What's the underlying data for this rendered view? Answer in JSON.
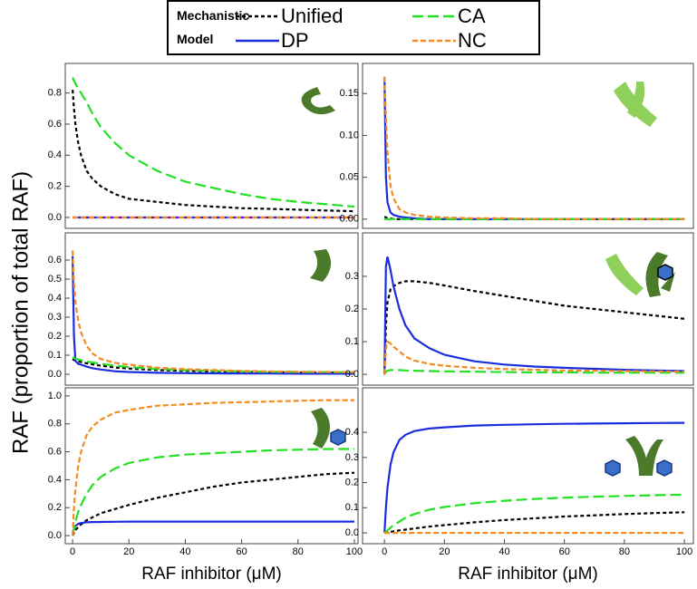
{
  "figure": {
    "legend_title": "Mechanistic Model",
    "ylabel": "RAF (proportion of total RAF)"
  },
  "chart_data": [
    {
      "type": "line",
      "xlim": [
        -2.6,
        101.3
      ],
      "ylim": [
        -0.07,
        0.99
      ],
      "yticks": [
        {
          "value": 0,
          "label": "0.0"
        },
        0.2,
        0.4,
        0.6,
        0.8
      ],
      "x": [
        0,
        0.5,
        1,
        2,
        3,
        5,
        7,
        10,
        15,
        20,
        30,
        40,
        50,
        60,
        70,
        80,
        90,
        100
      ],
      "series": [
        {
          "name": "Unified",
          "color": "#000000",
          "dash": "4,3",
          "values": [
            0.82,
            0.7,
            0.6,
            0.48,
            0.4,
            0.3,
            0.25,
            0.2,
            0.15,
            0.12,
            0.1,
            0.08,
            0.07,
            0.06,
            0.055,
            0.05,
            0.045,
            0.04
          ]
        },
        {
          "name": "DP",
          "color": "#1a2ee0",
          "dash": "none",
          "values": [
            0,
            0,
            0,
            0,
            0,
            0,
            0,
            0,
            0,
            0,
            0,
            0,
            0,
            0,
            0,
            0,
            0,
            0
          ]
        },
        {
          "name": "CA",
          "color": "#22e022",
          "dash": "12,5",
          "values": [
            0.9,
            0.88,
            0.86,
            0.83,
            0.8,
            0.74,
            0.67,
            0.58,
            0.48,
            0.4,
            0.3,
            0.23,
            0.19,
            0.15,
            0.12,
            0.1,
            0.085,
            0.07
          ]
        },
        {
          "name": "NC",
          "color": "#f58a1f",
          "dash": "6,3",
          "values": [
            0,
            0,
            0,
            0,
            0,
            0,
            0,
            0,
            0,
            0,
            0,
            0,
            0,
            0,
            0,
            0,
            0,
            0
          ]
        }
      ]
    },
    {
      "type": "line",
      "xlim": [
        -7.3,
        103
      ],
      "ylim": [
        -0.011,
        0.186
      ],
      "yticks": [
        {
          "value": 0,
          "label": "0.00"
        },
        0.05,
        {
          "value": 0.1,
          "label": "0.10"
        },
        0.15
      ],
      "x": [
        0,
        0.5,
        1,
        2,
        3,
        5,
        7,
        10,
        15,
        20,
        30,
        40,
        50,
        60,
        70,
        80,
        90,
        100
      ],
      "series": [
        {
          "color": "#000000",
          "dash": "4,3",
          "values": [
            0.003,
            0.002,
            0.001,
            0.001,
            0,
            0,
            0,
            0,
            0,
            0,
            0,
            0,
            0,
            0,
            0,
            0,
            0,
            0
          ]
        },
        {
          "color": "#1a2ee0",
          "dash": "none",
          "values": [
            0.17,
            0.05,
            0.02,
            0.008,
            0.005,
            0.003,
            0.002,
            0.001,
            0,
            0,
            0,
            0,
            0,
            0,
            0,
            0,
            0,
            0
          ]
        },
        {
          "color": "#22e022",
          "dash": "12,5",
          "values": [
            0,
            0,
            0,
            0,
            0,
            0,
            0,
            0,
            0,
            0,
            0,
            0,
            0,
            0,
            0,
            0,
            0,
            0
          ]
        },
        {
          "color": "#f58a1f",
          "dash": "6,3",
          "values": [
            0.17,
            0.12,
            0.08,
            0.04,
            0.025,
            0.012,
            0.008,
            0.005,
            0.003,
            0.002,
            0.001,
            0.001,
            0,
            0,
            0,
            0,
            0,
            0
          ]
        }
      ]
    },
    {
      "type": "line",
      "xlim": [
        -2.6,
        101.3
      ],
      "ylim": [
        -0.057,
        0.743
      ],
      "yticks": [
        {
          "value": 0,
          "label": "0.0"
        },
        0.1,
        0.2,
        0.3,
        0.4,
        0.5,
        0.6
      ],
      "x": [
        0,
        0.5,
        1,
        2,
        3,
        5,
        7,
        10,
        15,
        20,
        30,
        40,
        50,
        60,
        70,
        80,
        90,
        100
      ],
      "series": [
        {
          "color": "#000000",
          "dash": "4,3",
          "values": [
            0.08,
            0.075,
            0.072,
            0.068,
            0.064,
            0.058,
            0.052,
            0.045,
            0.036,
            0.03,
            0.022,
            0.018,
            0.015,
            0.013,
            0.011,
            0.01,
            0.009,
            0.008
          ]
        },
        {
          "color": "#1a2ee0",
          "dash": "none",
          "values": [
            0.62,
            0.2,
            0.07,
            0.055,
            0.05,
            0.04,
            0.032,
            0.025,
            0.016,
            0.012,
            0.008,
            0.006,
            0.005,
            0.004,
            0.004,
            0.003,
            0.003,
            0.003
          ]
        },
        {
          "color": "#22e022",
          "dash": "12,5",
          "values": [
            0.09,
            0.085,
            0.082,
            0.078,
            0.074,
            0.068,
            0.062,
            0.055,
            0.045,
            0.038,
            0.028,
            0.022,
            0.018,
            0.015,
            0.013,
            0.012,
            0.011,
            0.01
          ]
        },
        {
          "color": "#f58a1f",
          "dash": "6,3",
          "values": [
            0.65,
            0.48,
            0.38,
            0.28,
            0.22,
            0.15,
            0.11,
            0.08,
            0.06,
            0.05,
            0.035,
            0.027,
            0.022,
            0.018,
            0.015,
            0.013,
            0.012,
            0.01
          ]
        }
      ]
    },
    {
      "type": "line",
      "xlim": [
        -7.3,
        103
      ],
      "ylim": [
        -0.033,
        0.433
      ],
      "yticks": [
        {
          "value": 0,
          "label": "0.0"
        },
        0.1,
        0.2,
        0.3
      ],
      "x": [
        0,
        0.5,
        1,
        2,
        3,
        5,
        7,
        10,
        15,
        20,
        30,
        40,
        50,
        60,
        70,
        80,
        90,
        100
      ],
      "series": [
        {
          "color": "#000000",
          "dash": "4,3",
          "values": [
            0,
            0.15,
            0.22,
            0.26,
            0.27,
            0.28,
            0.285,
            0.285,
            0.28,
            0.272,
            0.255,
            0.24,
            0.225,
            0.21,
            0.2,
            0.19,
            0.18,
            0.17
          ]
        },
        {
          "color": "#1a2ee0",
          "dash": "none",
          "values": [
            0,
            0.33,
            0.36,
            0.32,
            0.27,
            0.2,
            0.15,
            0.11,
            0.08,
            0.06,
            0.04,
            0.03,
            0.024,
            0.02,
            0.017,
            0.014,
            0.012,
            0.01
          ]
        },
        {
          "color": "#22e022",
          "dash": "12,5",
          "values": [
            0,
            0.008,
            0.011,
            0.013,
            0.013,
            0.013,
            0.012,
            0.011,
            0.01,
            0.009,
            0.008,
            0.007,
            0.006,
            0.006,
            0.005,
            0.005,
            0.005,
            0.005
          ]
        },
        {
          "color": "#f58a1f",
          "dash": "6,3",
          "values": [
            0,
            0.08,
            0.1,
            0.095,
            0.085,
            0.07,
            0.055,
            0.042,
            0.032,
            0.026,
            0.02,
            0.016,
            0.014,
            0.012,
            0.011,
            0.01,
            0.009,
            0.008
          ]
        }
      ]
    },
    {
      "type": "line",
      "xlim": [
        -2.6,
        101.3
      ],
      "ylim": [
        -0.058,
        1.058
      ],
      "xlabel": "RAF inhibitor (μM)",
      "xticks": [
        0,
        20,
        40,
        60,
        80,
        100
      ],
      "yticks": [
        {
          "value": 0,
          "label": "0.0"
        },
        0.2,
        0.4,
        0.6,
        0.8,
        {
          "value": 1,
          "label": "1.0"
        }
      ],
      "x": [
        0,
        0.5,
        1,
        2,
        3,
        5,
        7,
        10,
        15,
        20,
        30,
        40,
        50,
        60,
        70,
        80,
        90,
        100
      ],
      "series": [
        {
          "color": "#000000",
          "dash": "4,3",
          "values": [
            0,
            0.02,
            0.04,
            0.06,
            0.08,
            0.11,
            0.13,
            0.16,
            0.19,
            0.22,
            0.27,
            0.31,
            0.35,
            0.38,
            0.4,
            0.42,
            0.44,
            0.45
          ]
        },
        {
          "color": "#1a2ee0",
          "dash": "none",
          "values": [
            0,
            0.05,
            0.07,
            0.085,
            0.09,
            0.095,
            0.097,
            0.098,
            0.099,
            0.1,
            0.1,
            0.1,
            0.1,
            0.1,
            0.1,
            0.1,
            0.1,
            0.1
          ]
        },
        {
          "color": "#22e022",
          "dash": "12,5",
          "values": [
            0,
            0.05,
            0.1,
            0.17,
            0.22,
            0.3,
            0.36,
            0.42,
            0.48,
            0.52,
            0.56,
            0.58,
            0.59,
            0.6,
            0.61,
            0.615,
            0.62,
            0.62
          ]
        },
        {
          "color": "#f58a1f",
          "dash": "6,3",
          "values": [
            0,
            0.2,
            0.33,
            0.5,
            0.6,
            0.72,
            0.78,
            0.83,
            0.88,
            0.9,
            0.93,
            0.94,
            0.95,
            0.955,
            0.96,
            0.965,
            0.97,
            0.97
          ]
        }
      ]
    },
    {
      "type": "line",
      "xlim": [
        -7.3,
        103
      ],
      "ylim": [
        -0.043,
        0.577
      ],
      "xlabel": "RAF inhibitor (μM)",
      "xticks": [
        0,
        20,
        40,
        60,
        80,
        100
      ],
      "yticks": [
        {
          "value": 0,
          "label": "0.0"
        },
        0.1,
        0.2,
        0.3,
        0.4
      ],
      "x": [
        0,
        0.5,
        1,
        2,
        3,
        5,
        7,
        10,
        15,
        20,
        30,
        40,
        50,
        60,
        70,
        80,
        90,
        100
      ],
      "series": [
        {
          "color": "#000000",
          "dash": "4,3",
          "values": [
            0,
            0.001,
            0.002,
            0.004,
            0.006,
            0.01,
            0.013,
            0.018,
            0.025,
            0.031,
            0.042,
            0.051,
            0.058,
            0.065,
            0.07,
            0.075,
            0.079,
            0.082
          ]
        },
        {
          "color": "#1a2ee0",
          "dash": "none",
          "values": [
            0,
            0.1,
            0.18,
            0.27,
            0.32,
            0.37,
            0.39,
            0.405,
            0.415,
            0.42,
            0.427,
            0.43,
            0.432,
            0.434,
            0.435,
            0.436,
            0.437,
            0.438
          ]
        },
        {
          "color": "#22e022",
          "dash": "12,5",
          "values": [
            0,
            0.005,
            0.01,
            0.02,
            0.03,
            0.045,
            0.06,
            0.075,
            0.092,
            0.103,
            0.118,
            0.128,
            0.135,
            0.14,
            0.144,
            0.147,
            0.15,
            0.152
          ]
        },
        {
          "color": "#f58a1f",
          "dash": "6,3",
          "values": [
            0,
            0,
            0,
            0,
            0,
            0,
            0,
            0,
            0,
            0,
            0,
            0,
            0,
            0,
            0,
            0,
            0,
            0
          ]
        }
      ]
    }
  ]
}
